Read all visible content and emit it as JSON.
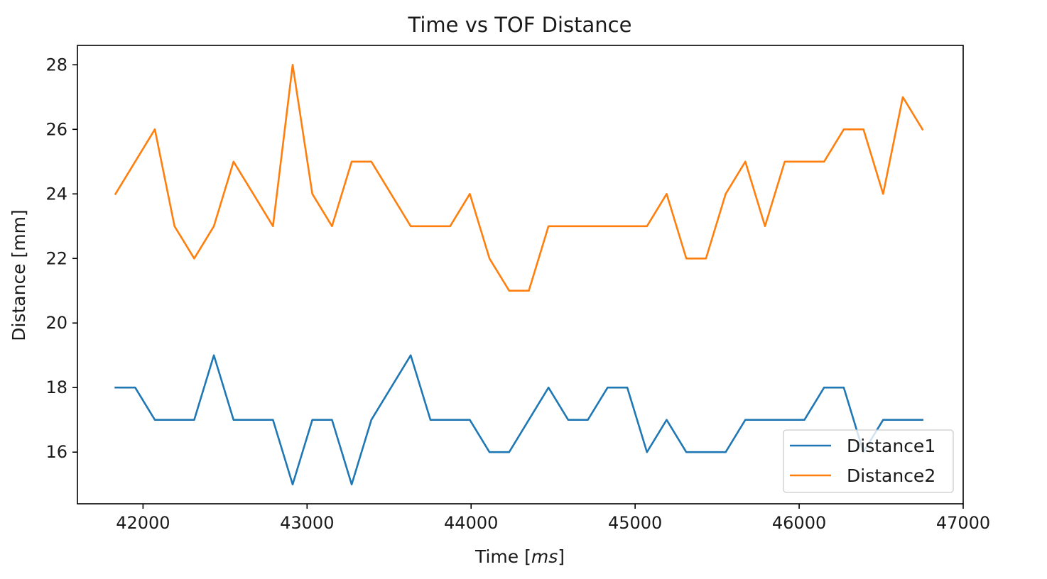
{
  "chart_data": {
    "type": "line",
    "title": "Time vs TOF Distance",
    "xlabel_prefix": "Time [",
    "xlabel_unit": "ms",
    "xlabel_suffix": "]",
    "ylabel": "Distance [mm]",
    "xlim": [
      41600,
      47000
    ],
    "ylim": [
      14.4,
      28.6
    ],
    "xticks": [
      42000,
      43000,
      44000,
      45000,
      46000,
      47000
    ],
    "yticks": [
      16,
      18,
      20,
      22,
      24,
      26,
      28
    ],
    "grid": false,
    "legend_position": "lower right",
    "x": [
      41832,
      41952,
      42072,
      42192,
      42312,
      42432,
      42552,
      42672,
      42792,
      42912,
      43032,
      43152,
      43272,
      43392,
      43512,
      43632,
      43752,
      43872,
      43992,
      44112,
      44232,
      44352,
      44472,
      44592,
      44712,
      44832,
      44952,
      45072,
      45192,
      45312,
      45432,
      45552,
      45672,
      45792,
      45912,
      46032,
      46152,
      46272,
      46392,
      46512,
      46632,
      46752
    ],
    "series": [
      {
        "name": "Distance1",
        "color": "#1f77b4",
        "values": [
          18,
          18,
          17,
          17,
          17,
          19,
          17,
          17,
          17,
          15,
          17,
          17,
          15,
          17,
          18,
          19,
          17,
          17,
          17,
          16,
          16,
          17,
          18,
          17,
          17,
          18,
          18,
          16,
          17,
          16,
          16,
          16,
          17,
          17,
          17,
          17,
          18,
          18,
          16,
          17,
          17,
          17
        ]
      },
      {
        "name": "Distance2",
        "color": "#ff7f0e",
        "values": [
          24,
          25,
          26,
          23,
          22,
          23,
          25,
          24,
          23,
          28,
          24,
          23,
          25,
          25,
          24,
          23,
          23,
          23,
          24,
          22,
          21,
          21,
          23,
          23,
          23,
          23,
          23,
          23,
          24,
          22,
          22,
          24,
          25,
          23,
          25,
          25,
          25,
          26,
          26,
          24,
          27,
          26
        ]
      }
    ]
  }
}
